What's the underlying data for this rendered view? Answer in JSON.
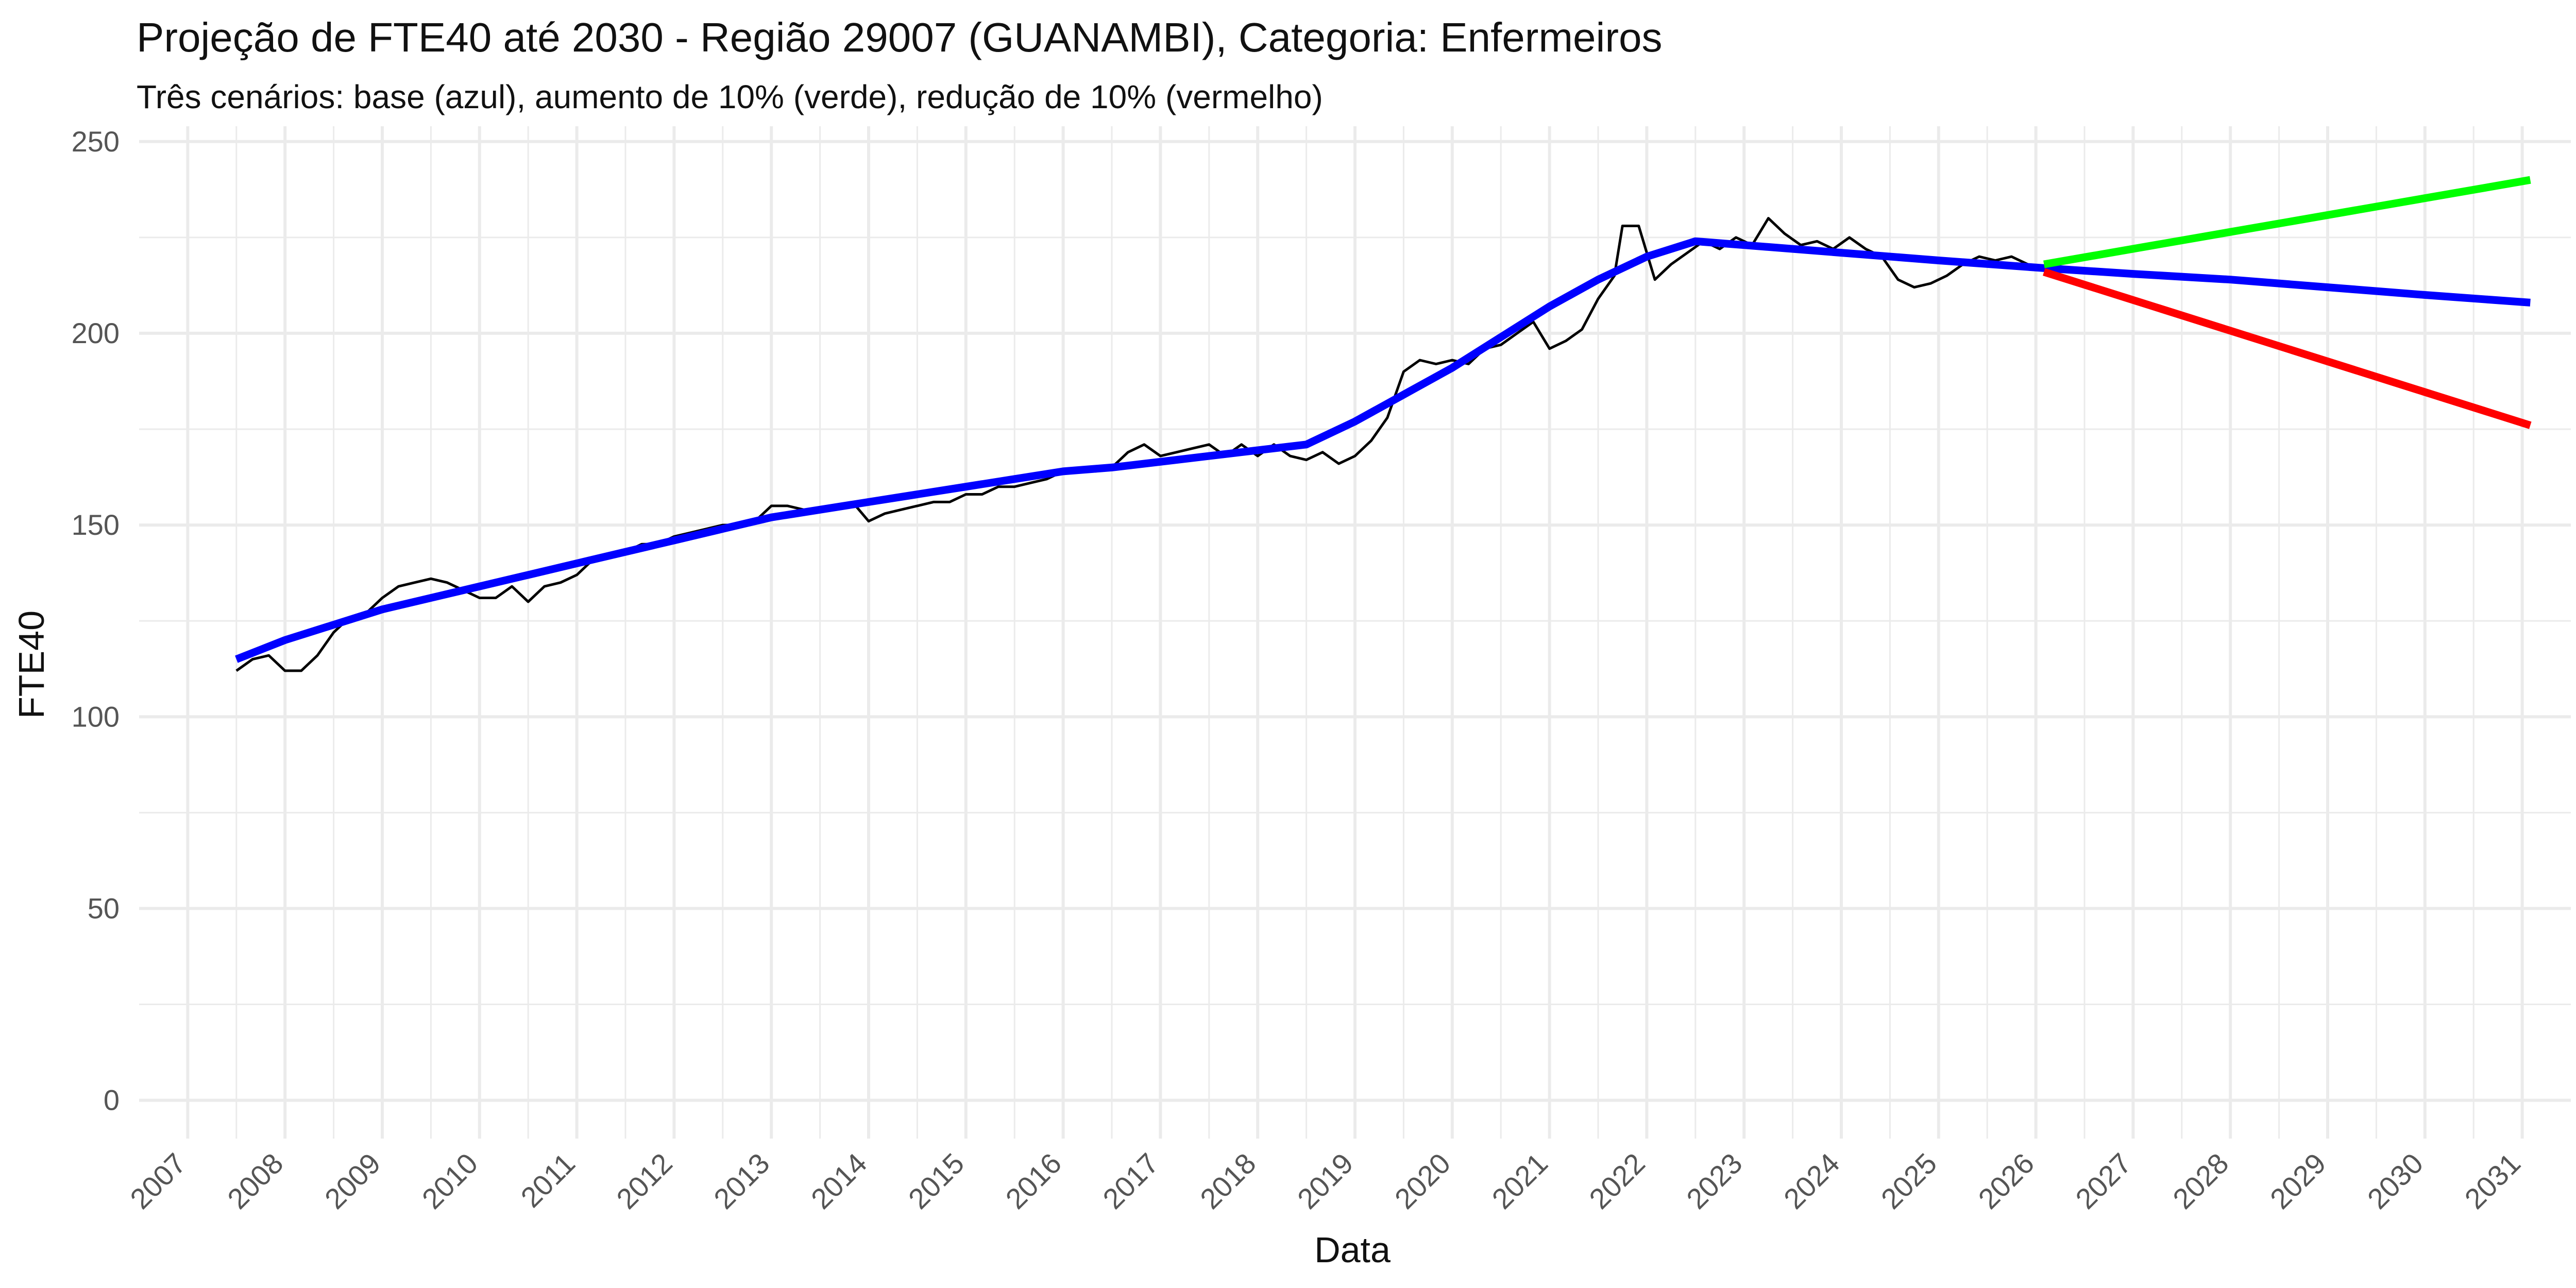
{
  "chart_data": {
    "type": "line",
    "title": "Projeção de FTE40 até 2030 - Região 29007 (GUANAMBI), Categoria: Enfermeiros",
    "subtitle": "Três cenários: base (azul), aumento de 10% (verde), redução de 10% (vermelho)",
    "xlabel": "Data",
    "ylabel": "FTE40",
    "xlim": [
      "2006-07-01",
      "2031-07-01"
    ],
    "ylim": [
      -10,
      254
    ],
    "x_ticks": [
      "2007",
      "2008",
      "2009",
      "2010",
      "2011",
      "2012",
      "2013",
      "2014",
      "2015",
      "2016",
      "2017",
      "2018",
      "2019",
      "2020",
      "2021",
      "2022",
      "2023",
      "2024",
      "2025",
      "2026",
      "2027",
      "2028",
      "2029",
      "2030",
      "2031"
    ],
    "y_ticks": [
      "0",
      "50",
      "100",
      "150",
      "200",
      "250"
    ],
    "grid": true,
    "legend": "none",
    "colors": {
      "observed": "#000000",
      "base": "#0000ff",
      "increase": "#00ff00",
      "decrease": "#ff0000",
      "grid": "#ebebeb"
    },
    "series": [
      {
        "color": "#000000",
        "points": [
          [
            "2007-07-01",
            112
          ],
          [
            "2007-09-01",
            115
          ],
          [
            "2007-11-01",
            116
          ],
          [
            "2008-01-01",
            112
          ],
          [
            "2008-03-01",
            112
          ],
          [
            "2008-05-01",
            116
          ],
          [
            "2008-07-01",
            122
          ],
          [
            "2008-09-01",
            126
          ],
          [
            "2008-11-01",
            127
          ],
          [
            "2009-01-01",
            131
          ],
          [
            "2009-03-01",
            134
          ],
          [
            "2009-05-01",
            135
          ],
          [
            "2009-07-01",
            136
          ],
          [
            "2009-09-01",
            135
          ],
          [
            "2009-11-01",
            133
          ],
          [
            "2010-01-01",
            131
          ],
          [
            "2010-03-01",
            131
          ],
          [
            "2010-05-01",
            134
          ],
          [
            "2010-07-01",
            130
          ],
          [
            "2010-09-01",
            134
          ],
          [
            "2010-11-01",
            135
          ],
          [
            "2011-01-01",
            137
          ],
          [
            "2011-03-01",
            141
          ],
          [
            "2011-05-01",
            142
          ],
          [
            "2011-07-01",
            143
          ],
          [
            "2011-09-01",
            145
          ],
          [
            "2011-11-01",
            145
          ],
          [
            "2012-01-01",
            147
          ],
          [
            "2012-03-01",
            148
          ],
          [
            "2012-05-01",
            149
          ],
          [
            "2012-07-01",
            150
          ],
          [
            "2012-09-01",
            150
          ],
          [
            "2012-11-01",
            151
          ],
          [
            "2013-01-01",
            155
          ],
          [
            "2013-03-01",
            155
          ],
          [
            "2013-05-01",
            154
          ],
          [
            "2013-07-01",
            154
          ],
          [
            "2013-09-01",
            155
          ],
          [
            "2013-11-01",
            156
          ],
          [
            "2014-01-01",
            151
          ],
          [
            "2014-03-01",
            153
          ],
          [
            "2014-05-01",
            154
          ],
          [
            "2014-07-01",
            155
          ],
          [
            "2014-09-01",
            156
          ],
          [
            "2014-11-01",
            156
          ],
          [
            "2015-01-01",
            158
          ],
          [
            "2015-03-01",
            158
          ],
          [
            "2015-05-01",
            160
          ],
          [
            "2015-07-01",
            160
          ],
          [
            "2015-09-01",
            161
          ],
          [
            "2015-11-01",
            162
          ],
          [
            "2016-01-01",
            164
          ],
          [
            "2016-03-01",
            164
          ],
          [
            "2016-05-01",
            164
          ],
          [
            "2016-07-01",
            165
          ],
          [
            "2016-09-01",
            169
          ],
          [
            "2016-11-01",
            171
          ],
          [
            "2017-01-01",
            168
          ],
          [
            "2017-03-01",
            169
          ],
          [
            "2017-05-01",
            170
          ],
          [
            "2017-07-01",
            171
          ],
          [
            "2017-09-01",
            168
          ],
          [
            "2017-11-01",
            171
          ],
          [
            "2018-01-01",
            168
          ],
          [
            "2018-03-01",
            171
          ],
          [
            "2018-05-01",
            168
          ],
          [
            "2018-07-01",
            167
          ],
          [
            "2018-09-01",
            169
          ],
          [
            "2018-11-01",
            166
          ],
          [
            "2019-01-01",
            168
          ],
          [
            "2019-03-01",
            172
          ],
          [
            "2019-05-01",
            178
          ],
          [
            "2019-07-01",
            190
          ],
          [
            "2019-09-01",
            193
          ],
          [
            "2019-11-01",
            192
          ],
          [
            "2020-01-01",
            193
          ],
          [
            "2020-03-01",
            192
          ],
          [
            "2020-05-01",
            196
          ],
          [
            "2020-07-01",
            197
          ],
          [
            "2020-09-01",
            200
          ],
          [
            "2020-11-01",
            203
          ],
          [
            "2021-01-01",
            196
          ],
          [
            "2021-03-01",
            198
          ],
          [
            "2021-05-01",
            201
          ],
          [
            "2021-07-01",
            209
          ],
          [
            "2021-09-01",
            215
          ],
          [
            "2021-10-01",
            228
          ],
          [
            "2021-12-01",
            228
          ],
          [
            "2022-02-01",
            214
          ],
          [
            "2022-04-01",
            218
          ],
          [
            "2022-06-01",
            221
          ],
          [
            "2022-08-01",
            224
          ],
          [
            "2022-10-01",
            222
          ],
          [
            "2022-12-01",
            225
          ],
          [
            "2023-02-01",
            223
          ],
          [
            "2023-04-01",
            230
          ],
          [
            "2023-06-01",
            226
          ],
          [
            "2023-08-01",
            223
          ],
          [
            "2023-10-01",
            224
          ],
          [
            "2023-12-01",
            222
          ],
          [
            "2024-02-01",
            225
          ],
          [
            "2024-04-01",
            222
          ],
          [
            "2024-06-01",
            220
          ],
          [
            "2024-08-01",
            214
          ],
          [
            "2024-10-01",
            212
          ],
          [
            "2024-12-01",
            213
          ],
          [
            "2025-02-01",
            215
          ],
          [
            "2025-04-01",
            218
          ],
          [
            "2025-06-01",
            220
          ],
          [
            "2025-08-01",
            219
          ],
          [
            "2025-10-01",
            220
          ],
          [
            "2025-12-01",
            218
          ],
          [
            "2026-02-01",
            217
          ]
        ]
      },
      {
        "color": "#0000ff",
        "points": [
          [
            "2007-07-01",
            115
          ],
          [
            "2008-01-01",
            120
          ],
          [
            "2008-07-01",
            124
          ],
          [
            "2009-01-01",
            128
          ],
          [
            "2009-07-01",
            131
          ],
          [
            "2010-01-01",
            134
          ],
          [
            "2010-07-01",
            137
          ],
          [
            "2011-01-01",
            140
          ],
          [
            "2011-07-01",
            143
          ],
          [
            "2012-01-01",
            146
          ],
          [
            "2012-07-01",
            149
          ],
          [
            "2013-01-01",
            152
          ],
          [
            "2013-07-01",
            154
          ],
          [
            "2014-01-01",
            156
          ],
          [
            "2014-07-01",
            158
          ],
          [
            "2015-01-01",
            160
          ],
          [
            "2015-07-01",
            162
          ],
          [
            "2016-01-01",
            164
          ],
          [
            "2016-07-01",
            165
          ],
          [
            "2017-01-01",
            166.5
          ],
          [
            "2017-07-01",
            168
          ],
          [
            "2018-01-01",
            169.5
          ],
          [
            "2018-07-01",
            171
          ],
          [
            "2019-01-01",
            177
          ],
          [
            "2019-07-01",
            184
          ],
          [
            "2020-01-01",
            191
          ],
          [
            "2020-07-01",
            199
          ],
          [
            "2021-01-01",
            207
          ],
          [
            "2021-07-01",
            214
          ],
          [
            "2022-01-01",
            220
          ],
          [
            "2022-07-01",
            224
          ],
          [
            "2023-01-01",
            223
          ],
          [
            "2024-01-01",
            221
          ],
          [
            "2025-01-01",
            219
          ],
          [
            "2026-02-01",
            217
          ],
          [
            "2027-01-01",
            215.5
          ],
          [
            "2028-01-01",
            214
          ],
          [
            "2029-01-01",
            212
          ],
          [
            "2030-01-01",
            210
          ],
          [
            "2031-02-01",
            208
          ]
        ]
      },
      {
        "color": "#00ff00",
        "points": [
          [
            "2026-02-01",
            218
          ],
          [
            "2031-02-01",
            240
          ]
        ]
      },
      {
        "color": "#ff0000",
        "points": [
          [
            "2026-02-01",
            216
          ],
          [
            "2031-02-01",
            176
          ]
        ]
      }
    ]
  }
}
